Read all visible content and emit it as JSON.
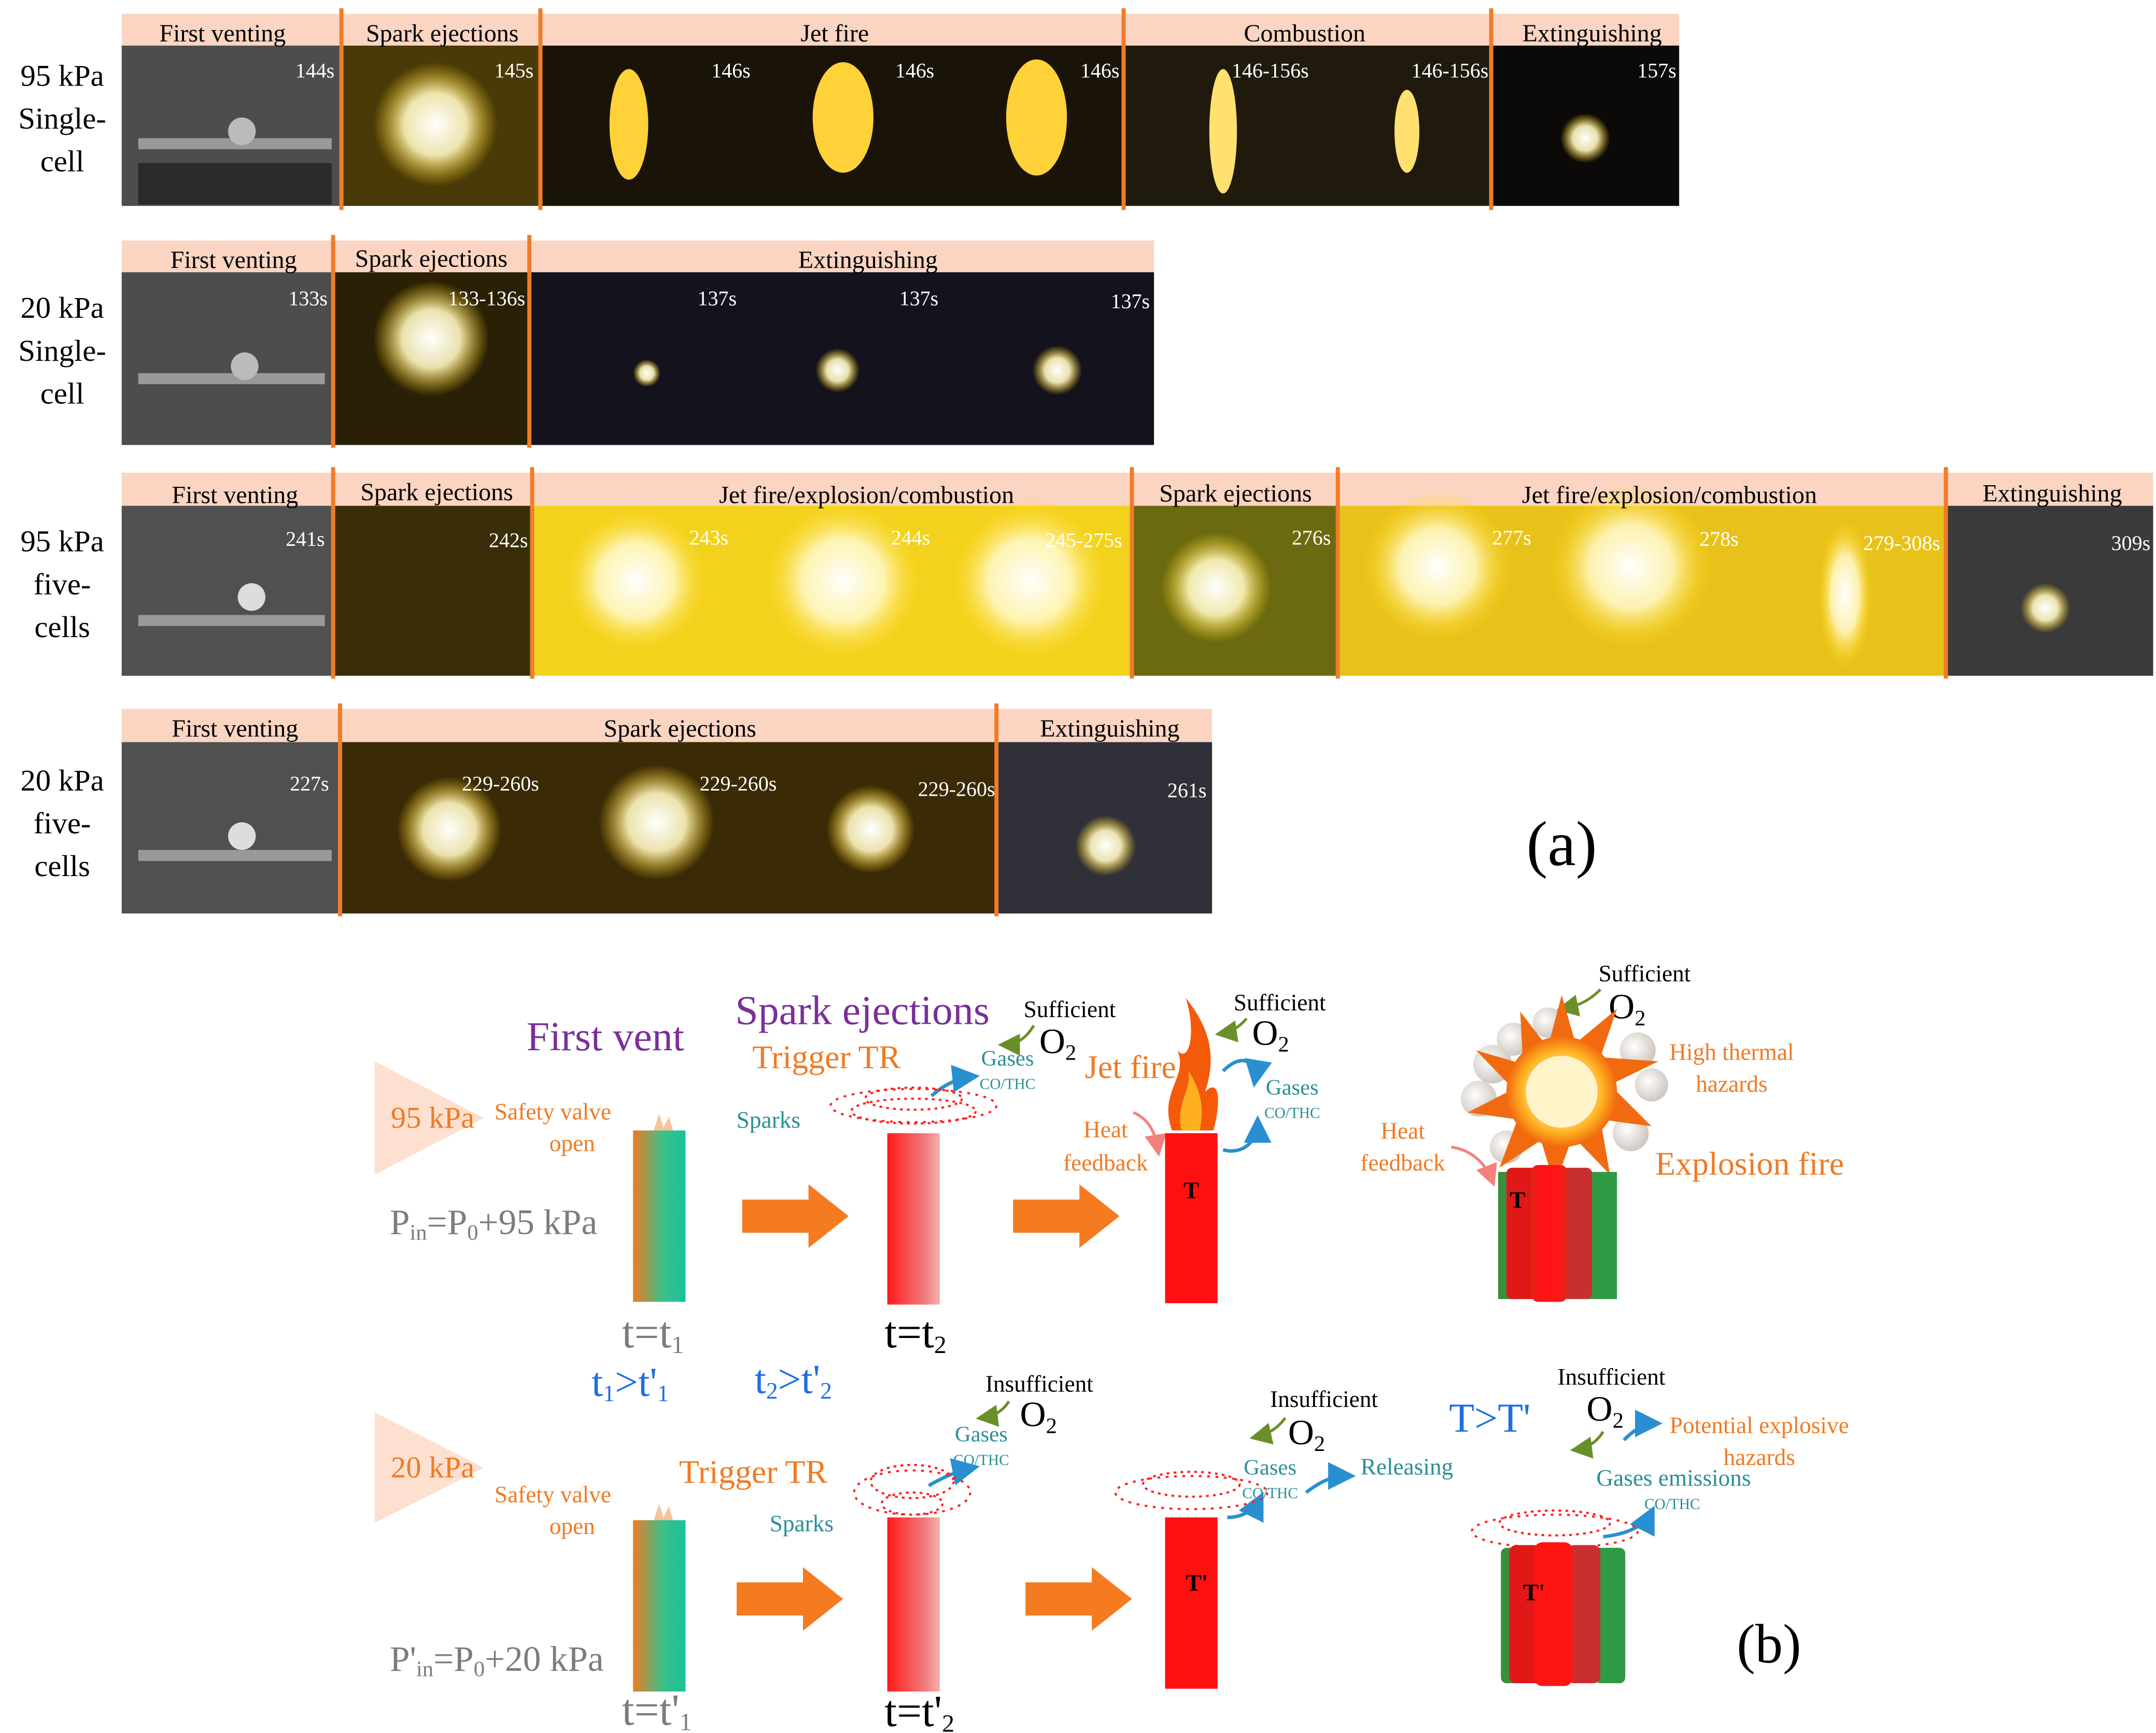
{
  "colors": {
    "band": "#fbd5c2",
    "divider": "#f07c2a",
    "purple": "#7a2f9a",
    "orange": "#f07a23",
    "teal": "#2a8f95",
    "blue": "#1f6fe0",
    "gray": "#7c7c7c",
    "olive": "#6a8f2a",
    "red": "#ff1010",
    "pink": "#f57f7a",
    "green": "#22b08a"
  },
  "panel_a": {
    "label": "(a)",
    "rows": [
      {
        "condition": [
          "95 kPa",
          "Single-",
          "cell"
        ],
        "stages": [
          "First venting",
          "Spark ejections",
          "Jet fire",
          "Combustion",
          "Extinguishing"
        ],
        "times": [
          "144s",
          "145s",
          "146s",
          "146s",
          "146s",
          "146-156s",
          "146-156s",
          "157s"
        ]
      },
      {
        "condition": [
          "20 kPa",
          "Single-",
          "cell"
        ],
        "stages": [
          "First venting",
          "Spark ejections",
          "Extinguishing"
        ],
        "times": [
          "133s",
          "133-136s",
          "137s",
          "137s",
          "137s"
        ]
      },
      {
        "condition": [
          "95 kPa",
          "five-",
          "cells"
        ],
        "stages": [
          "First venting",
          "Spark ejections",
          "Jet fire/explosion/combustion",
          "Spark ejections",
          "Jet fire/explosion/combustion",
          "Extinguishing"
        ],
        "times": [
          "241s",
          "242s",
          "243s",
          "244s",
          "245-275s",
          "276s",
          "277s",
          "278s",
          "279-308s",
          "309s"
        ]
      },
      {
        "condition": [
          "20 kPa",
          "five-",
          "cells"
        ],
        "stages": [
          "First venting",
          "Spark ejections",
          "Extinguishing"
        ],
        "times": [
          "227s",
          "229-260s",
          "229-260s",
          "229-260s",
          "261s"
        ]
      }
    ]
  },
  "panel_b": {
    "label": "(b)",
    "first_vent": "First vent",
    "spark_ejections": "Spark ejections",
    "p95": "95 kPa",
    "p20": "20 kPa",
    "safety_valve": [
      "Safety valve",
      "open"
    ],
    "pin95": {
      "main": "P",
      "sub": "in",
      "mid": "=P",
      "sub0": "0",
      "tail": "+95 kPa"
    },
    "pin20": {
      "main": "P'",
      "sub": "in",
      "mid": "=P",
      "sub0": "0",
      "tail": "+20 kPa"
    },
    "trigger_tr": "Trigger TR",
    "sparks": "Sparks",
    "sufficient": "Sufficient",
    "insufficient": "Insufficient",
    "o2": "O",
    "o2_sub": "2",
    "gases": "Gases",
    "co_thc": "CO/THC",
    "jet_fire": "Jet fire",
    "heat_feedback": [
      "Heat",
      "feedback"
    ],
    "high_thermal": [
      "High thermal",
      "hazards"
    ],
    "explosion_fire": "Explosion fire",
    "releasing": "Releasing",
    "gases_emissions": "Gases emissions",
    "potential": [
      "Potential explosive",
      "hazards"
    ],
    "T": "T",
    "T_prime": "T'",
    "t_eq_t1": {
      "a": "t=t",
      "sub": "1"
    },
    "t_eq_t2": {
      "a": "t=t",
      "sub": "2"
    },
    "t_eq_t1p": {
      "a": "t=t'",
      "sub": "1"
    },
    "t_eq_t2p": {
      "a": "t=t'",
      "sub": "2"
    },
    "t1_gt": {
      "a": "t",
      "sub1": "1",
      "b": ">t'",
      "sub2": "1"
    },
    "t2_gt": {
      "a": "t",
      "sub1": "2",
      "b": ">t'",
      "sub2": "2"
    },
    "T_gt": "T>T'"
  }
}
